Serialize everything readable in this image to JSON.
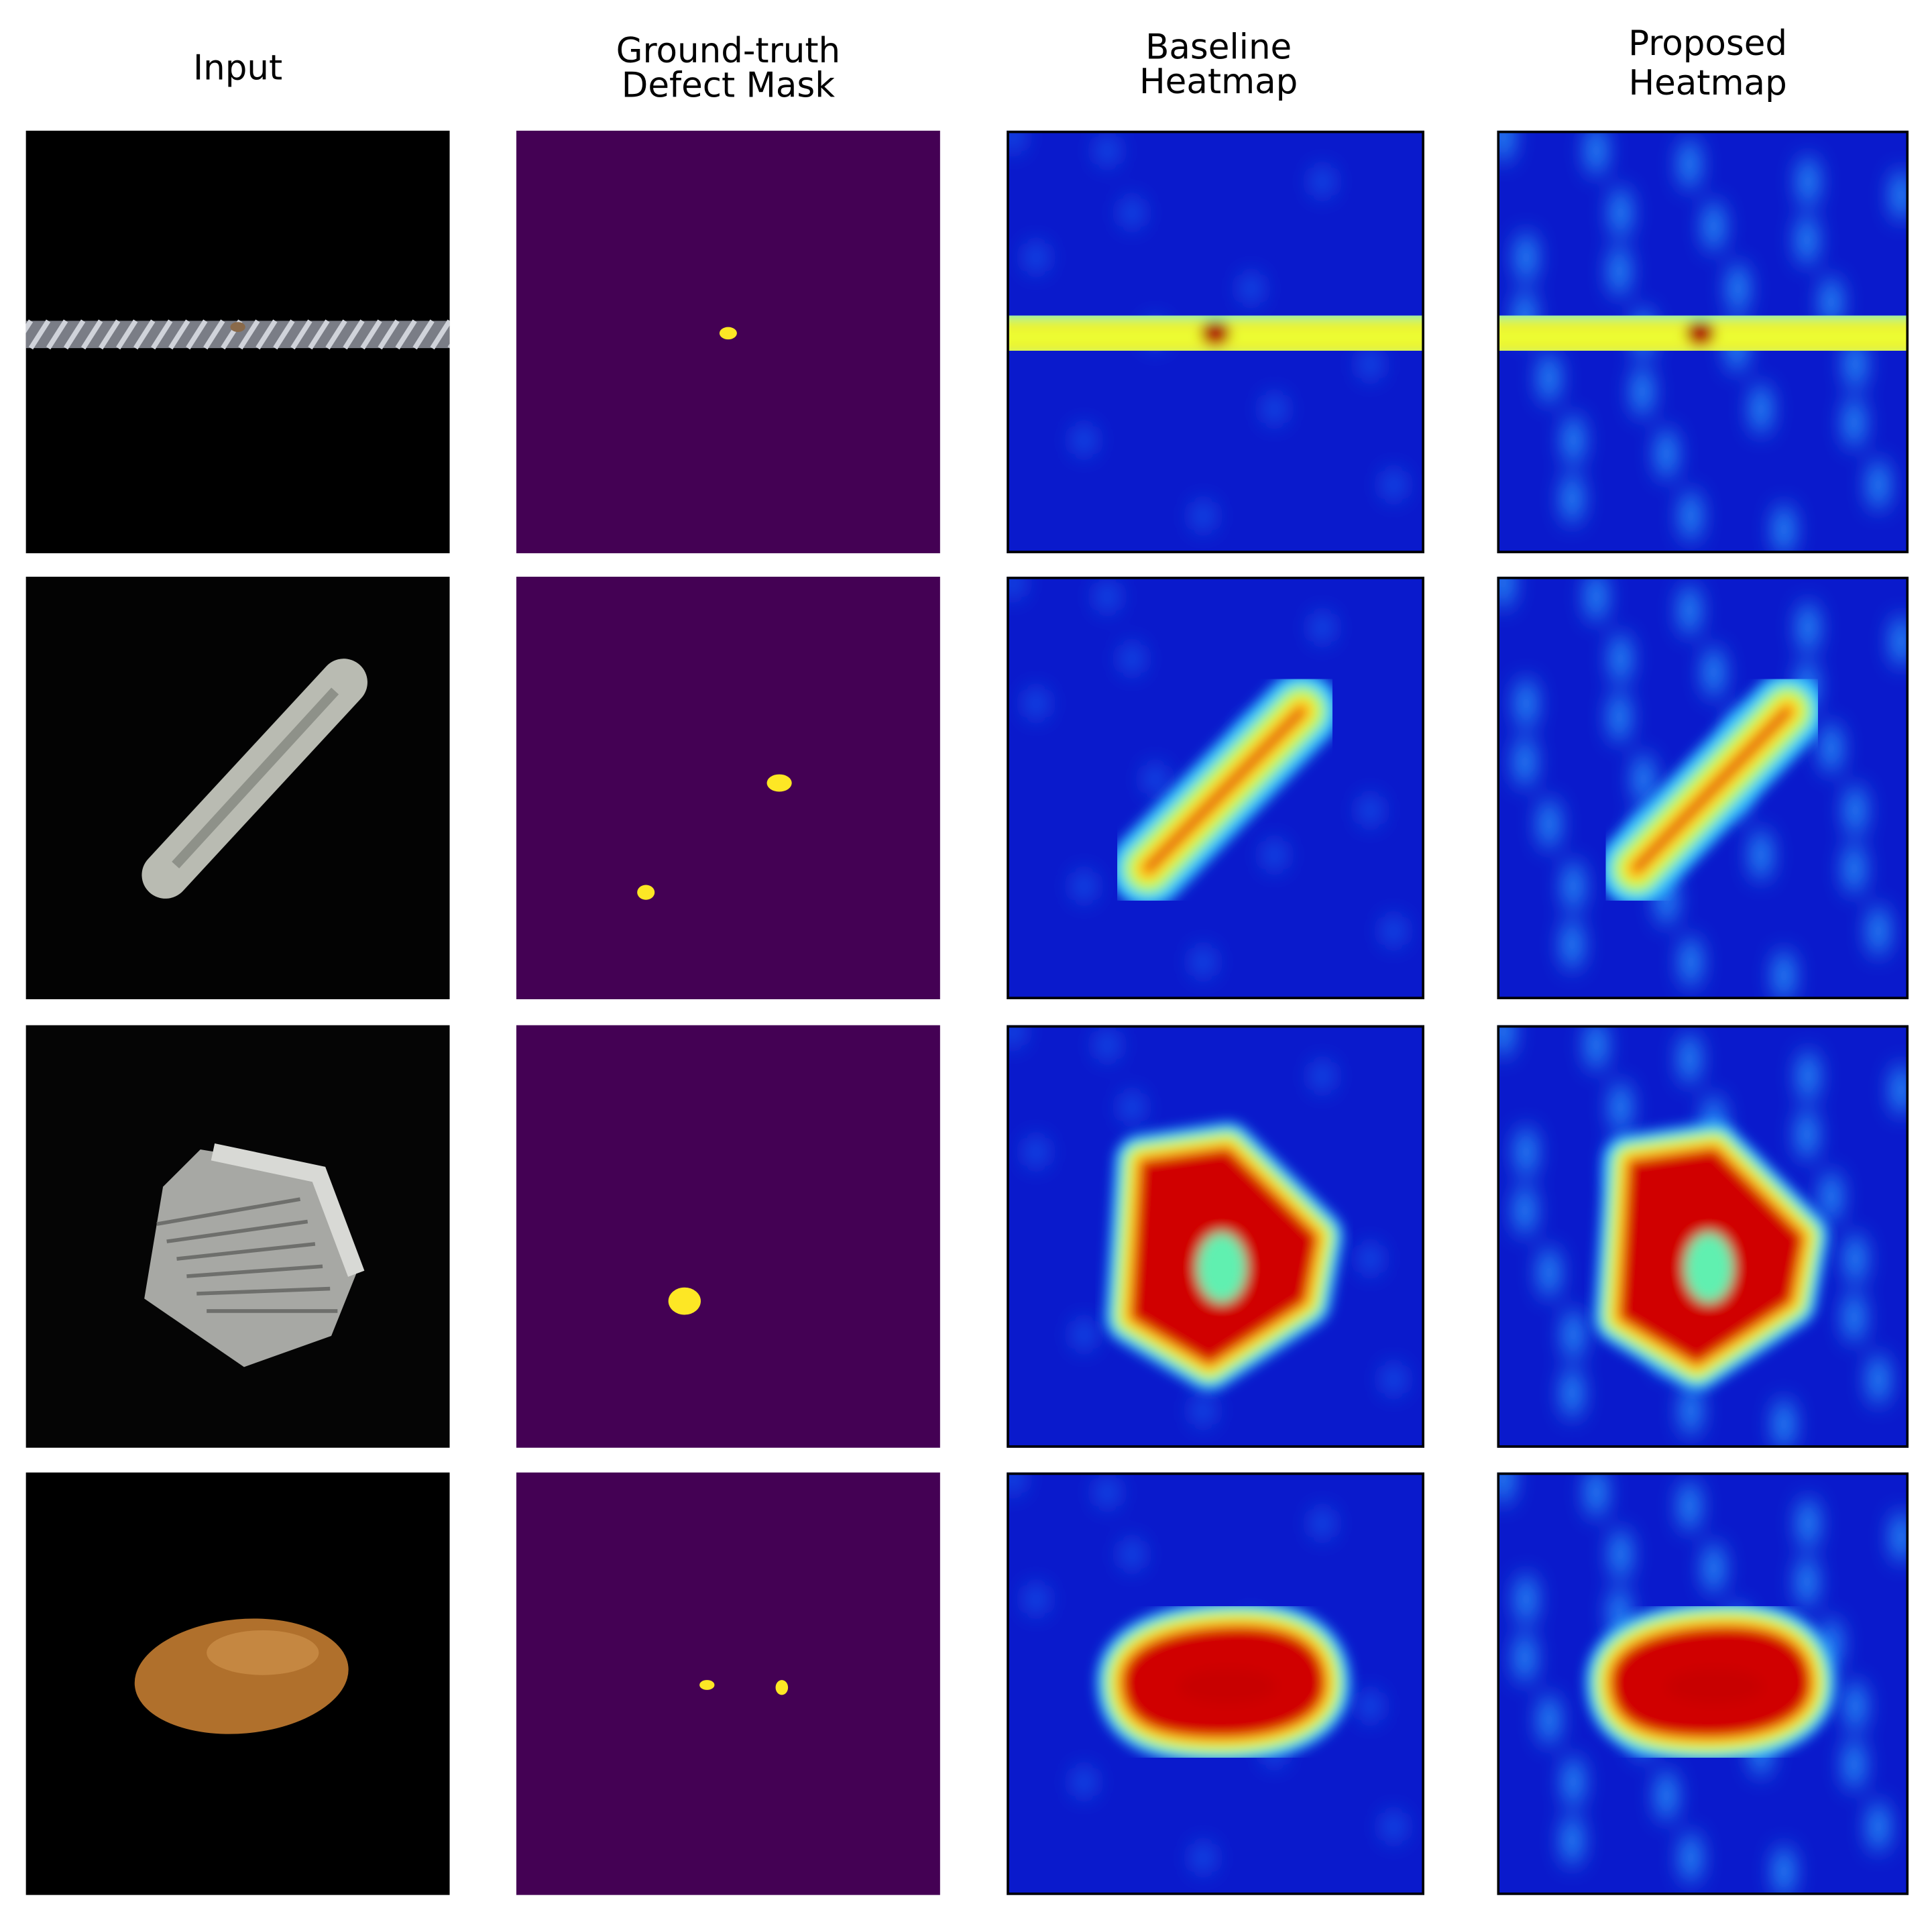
{
  "columns": [
    {
      "header": [
        "Input"
      ]
    },
    {
      "header": [
        "Ground-truth",
        "Defect Mask"
      ]
    },
    {
      "header": [
        "Baseline",
        "Heatmap"
      ]
    },
    {
      "header": [
        "Proposed",
        "Heatmap"
      ]
    }
  ]
}
